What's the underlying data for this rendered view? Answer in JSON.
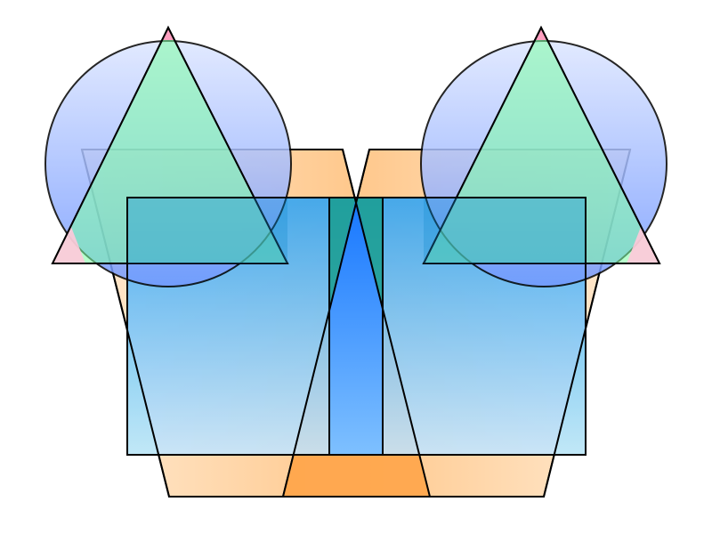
{
  "colors": {
    "background": "#ffffff",
    "outline": "#000000",
    "orange_light": "#ffe9cf",
    "orange_mid": "#ffc27f",
    "orange_strong": "#ffa64d",
    "blue_light": "#bfe3ff",
    "blue_mid": "#4aa8f2",
    "blue_deep": "#1a7aff",
    "circle_top": "#d9e4ff",
    "circle_bottom": "#7f9fff",
    "green_triangle": "#88ffaa",
    "green_light": "#b0f7c2",
    "teal": "#1a9e8f",
    "pink": "#ffb7cc"
  }
}
